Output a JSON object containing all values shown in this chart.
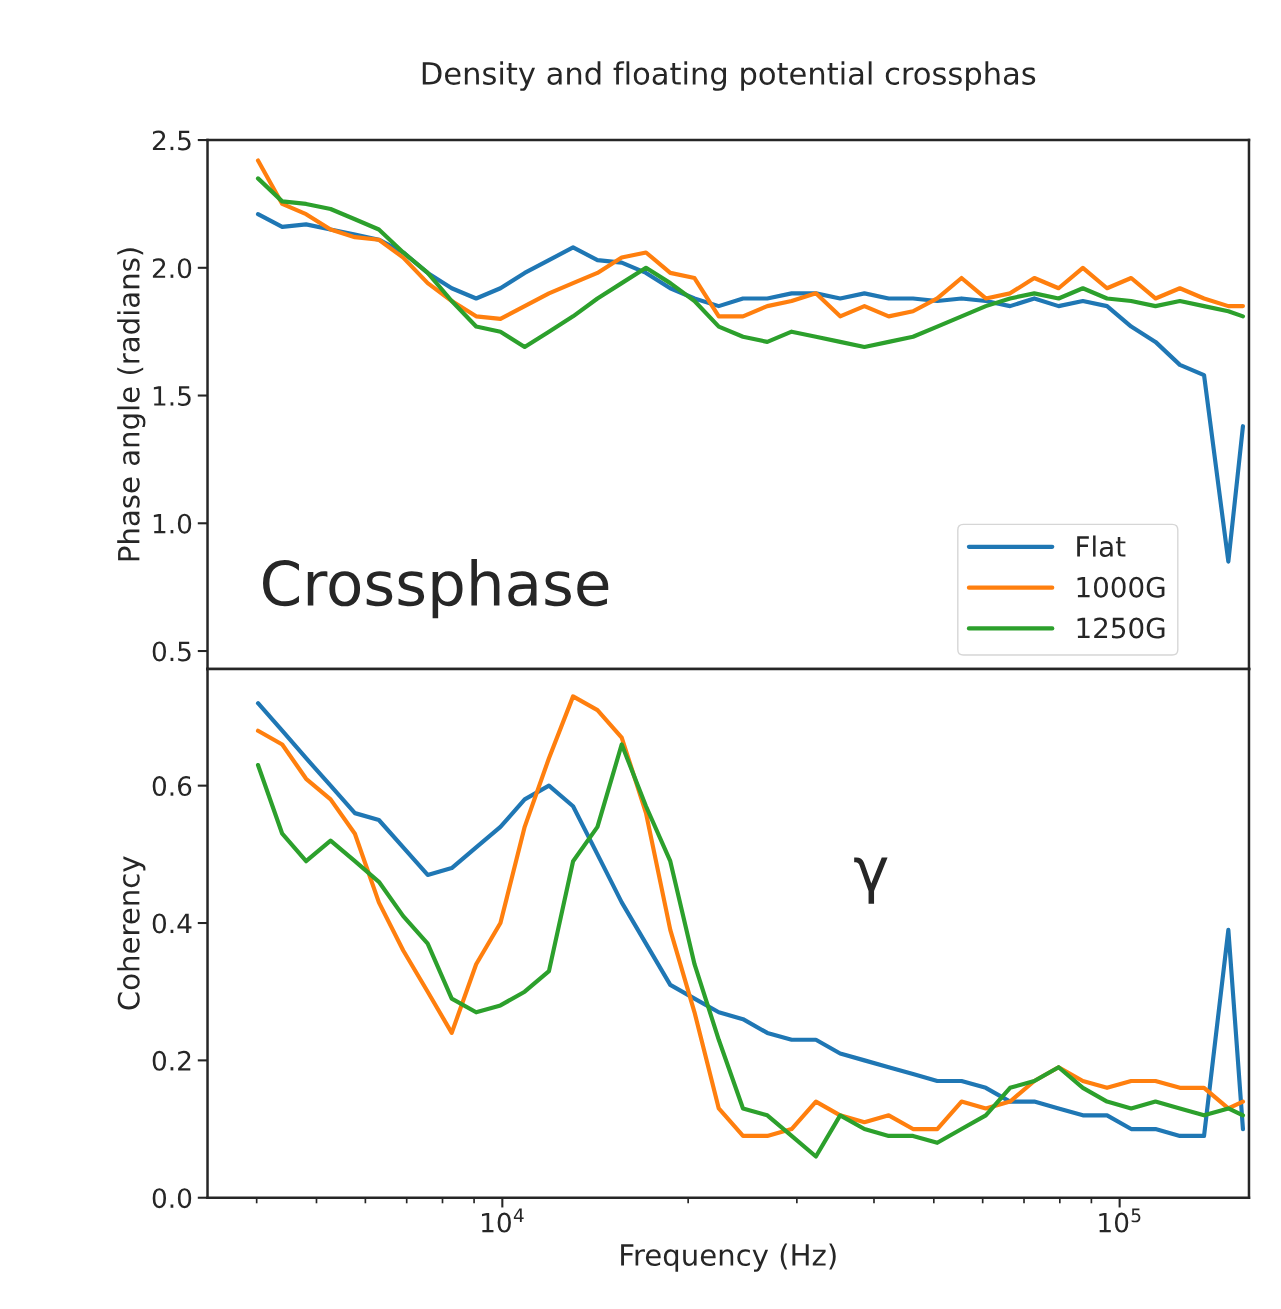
{
  "chart_data": [
    {
      "type": "line",
      "title": "Density and floating potential crossphas",
      "ylabel": "Phase angle (radians)",
      "log": "x",
      "tick_labels": "y",
      "legend": "bottom right",
      "annotations": [
        "Crossphase"
      ],
      "xlim": [
        3330,
        162000
      ],
      "ylim": [
        0.43,
        2.5
      ],
      "yticks": [
        0.5,
        {
          "value": 1,
          "label": "1.0"
        },
        1.5,
        {
          "value": 2,
          "label": "2.0"
        },
        2.5
      ],
      "x": [
        4020,
        4400,
        4810,
        5270,
        5770,
        6310,
        6910,
        7570,
        8280,
        9070,
        9930,
        10870,
        11900,
        13020,
        14260,
        15610,
        17090,
        18710,
        20480,
        22420,
        24540,
        26870,
        29420,
        32210,
        35260,
        38600,
        42260,
        46270,
        50650,
        55450,
        60700,
        66450,
        72740,
        79640,
        87180,
        95410,
        104400,
        114300,
        125200,
        137000,
        150000,
        158400
      ],
      "series": [
        {
          "name": "Flat",
          "color": "#1f77b4",
          "values": [
            2.21,
            2.16,
            2.17,
            2.15,
            2.13,
            2.11,
            2.06,
            1.98,
            1.92,
            1.88,
            1.92,
            1.98,
            2.03,
            2.08,
            2.03,
            2.02,
            1.98,
            1.92,
            1.88,
            1.85,
            1.88,
            1.88,
            1.9,
            1.9,
            1.88,
            1.9,
            1.88,
            1.88,
            1.87,
            1.88,
            1.87,
            1.85,
            1.88,
            1.85,
            1.87,
            1.85,
            1.77,
            1.71,
            1.62,
            1.58,
            0.85,
            1.38
          ]
        },
        {
          "name": "1000G",
          "color": "#ff7f0e",
          "values": [
            2.42,
            2.25,
            2.21,
            2.15,
            2.12,
            2.11,
            2.04,
            1.94,
            1.87,
            1.81,
            1.8,
            1.85,
            1.9,
            1.94,
            1.98,
            2.04,
            2.06,
            1.98,
            1.96,
            1.81,
            1.81,
            1.85,
            1.87,
            1.9,
            1.81,
            1.85,
            1.81,
            1.83,
            1.88,
            1.96,
            1.88,
            1.9,
            1.96,
            1.92,
            2.0,
            1.92,
            1.96,
            1.88,
            1.92,
            1.88,
            1.85,
            1.85
          ]
        },
        {
          "name": "1250G",
          "color": "#2ca02c",
          "values": [
            2.35,
            2.26,
            2.25,
            2.23,
            2.19,
            2.15,
            2.06,
            1.98,
            1.87,
            1.77,
            1.75,
            1.69,
            1.75,
            1.81,
            1.88,
            1.94,
            2.0,
            1.94,
            1.87,
            1.77,
            1.73,
            1.71,
            1.75,
            1.73,
            1.71,
            1.69,
            1.71,
            1.73,
            1.77,
            1.81,
            1.85,
            1.88,
            1.9,
            1.88,
            1.92,
            1.88,
            1.87,
            1.85,
            1.87,
            1.85,
            1.83,
            1.81
          ]
        }
      ]
    },
    {
      "type": "line",
      "xlabel": "Frequency (Hz)",
      "ylabel": "Coherency",
      "log": "x",
      "annotations": [
        "γ"
      ],
      "xlim": [
        3330,
        162000
      ],
      "ylim": [
        0,
        0.77
      ],
      "yticks": [
        {
          "value": 0,
          "label": "0.0"
        },
        0.2,
        0.4,
        0.6
      ],
      "xticks": [
        {
          "value": 10000,
          "label": "10$^{4}$"
        },
        {
          "value": 100000,
          "label": "10$^{5}$"
        }
      ],
      "x": [
        4020,
        4400,
        4810,
        5270,
        5770,
        6310,
        6910,
        7570,
        8280,
        9070,
        9930,
        10870,
        11900,
        13020,
        14260,
        15610,
        17090,
        18710,
        20480,
        22420,
        24540,
        26870,
        29420,
        32210,
        35260,
        38600,
        42260,
        46270,
        50650,
        55450,
        60700,
        66450,
        72740,
        79640,
        87180,
        95410,
        104400,
        114300,
        125200,
        137000,
        150000,
        158400
      ],
      "series": [
        {
          "color": "#1f77b4",
          "values": [
            0.72,
            0.68,
            0.64,
            0.6,
            0.56,
            0.55,
            0.51,
            0.47,
            0.48,
            0.51,
            0.54,
            0.58,
            0.6,
            0.57,
            0.5,
            0.43,
            0.37,
            0.31,
            0.29,
            0.27,
            0.26,
            0.24,
            0.23,
            0.23,
            0.21,
            0.2,
            0.19,
            0.18,
            0.17,
            0.17,
            0.16,
            0.14,
            0.14,
            0.13,
            0.12,
            0.12,
            0.1,
            0.1,
            0.09,
            0.09,
            0.39,
            0.1
          ]
        },
        {
          "color": "#ff7f0e",
          "values": [
            0.68,
            0.66,
            0.61,
            0.58,
            0.53,
            0.43,
            0.36,
            0.3,
            0.24,
            0.34,
            0.4,
            0.54,
            0.64,
            0.73,
            0.71,
            0.67,
            0.56,
            0.39,
            0.27,
            0.13,
            0.09,
            0.09,
            0.1,
            0.14,
            0.12,
            0.11,
            0.12,
            0.1,
            0.1,
            0.14,
            0.13,
            0.14,
            0.17,
            0.19,
            0.17,
            0.16,
            0.17,
            0.17,
            0.16,
            0.16,
            0.13,
            0.14
          ]
        },
        {
          "color": "#2ca02c",
          "values": [
            0.63,
            0.53,
            0.49,
            0.52,
            0.49,
            0.46,
            0.41,
            0.37,
            0.29,
            0.27,
            0.28,
            0.3,
            0.33,
            0.49,
            0.54,
            0.66,
            0.57,
            0.49,
            0.34,
            0.23,
            0.13,
            0.12,
            0.09,
            0.06,
            0.12,
            0.1,
            0.09,
            0.09,
            0.08,
            0.1,
            0.12,
            0.16,
            0.17,
            0.19,
            0.16,
            0.14,
            0.13,
            0.14,
            0.13,
            0.12,
            0.13,
            0.12
          ]
        }
      ]
    }
  ]
}
